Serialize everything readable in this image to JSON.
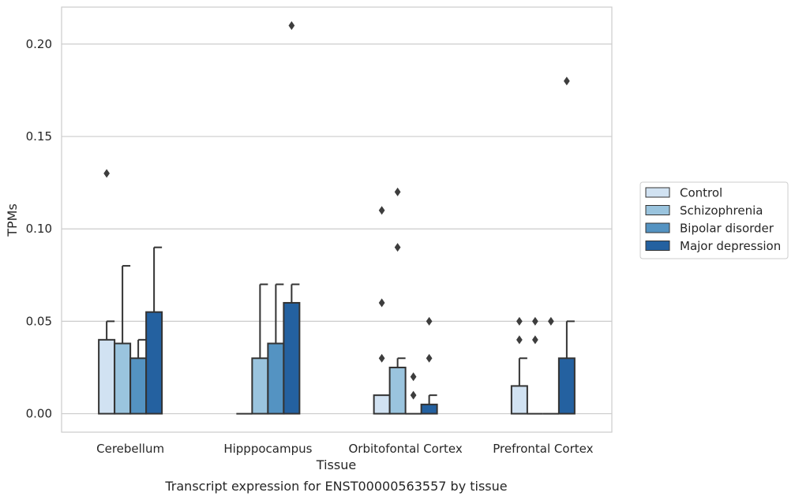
{
  "chart_data": {
    "type": "bar",
    "xlabel": "Tissue",
    "ylabel": "TPMs",
    "caption": "Transcript expression for ENST00000563557 by tissue",
    "ylim": [
      -0.01,
      0.22
    ],
    "yticks": [
      0.0,
      0.05,
      0.1,
      0.15,
      0.2
    ],
    "ytick_labels": [
      "0.00",
      "0.05",
      "0.10",
      "0.15",
      "0.20"
    ],
    "categories": [
      "Cerebellum",
      "Hipppocampus",
      "Orbitofontal Cortex",
      "Prefrontal Cortex"
    ],
    "grid": "horizontal",
    "legend_position": "right",
    "series": [
      {
        "name": "Control",
        "color": "#d1e2f2",
        "values": [
          0.04,
          0.0,
          0.01,
          0.015
        ],
        "error_upper": [
          0.05,
          0.0,
          null,
          0.03
        ],
        "outliers": [
          [
            0.13
          ],
          [],
          [
            0.11,
            0.06,
            0.03
          ],
          [
            0.05,
            0.04
          ]
        ]
      },
      {
        "name": "Schizophrenia",
        "color": "#9ac4de",
        "values": [
          0.038,
          0.03,
          0.025,
          0.0
        ],
        "error_upper": [
          0.08,
          0.07,
          0.03,
          null
        ],
        "outliers": [
          [],
          [],
          [
            0.12,
            0.09
          ],
          [
            0.05,
            0.04
          ]
        ]
      },
      {
        "name": "Bipolar disorder",
        "color": "#5493c2",
        "values": [
          0.03,
          0.038,
          0.0,
          0.0
        ],
        "error_upper": [
          0.04,
          0.07,
          null,
          null
        ],
        "outliers": [
          [],
          [],
          [
            0.02,
            0.01
          ],
          [
            0.05
          ]
        ]
      },
      {
        "name": "Major depression",
        "color": "#2461a0",
        "values": [
          0.055,
          0.06,
          0.005,
          0.03
        ],
        "error_upper": [
          0.09,
          0.07,
          0.01,
          0.05
        ],
        "outliers": [
          [],
          [
            0.21
          ],
          [
            0.05,
            0.03
          ],
          [
            0.18
          ]
        ]
      }
    ]
  }
}
